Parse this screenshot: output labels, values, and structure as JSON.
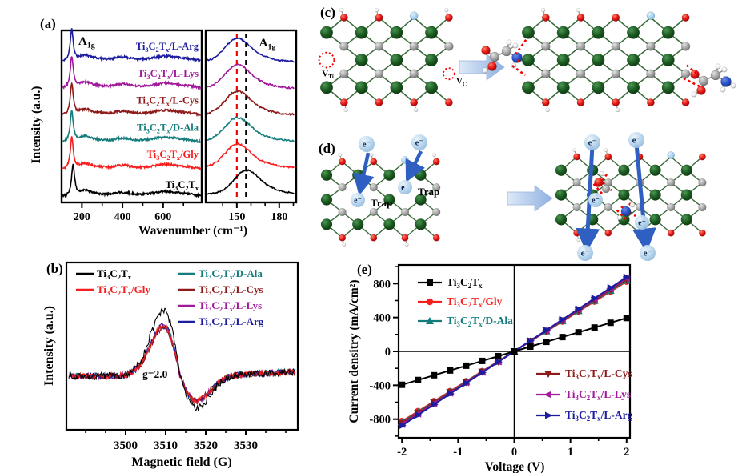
{
  "figure": {
    "panel_letters": {
      "a": "(a)",
      "b": "(b)",
      "c": "(c)",
      "d": "(d)",
      "e": "(e)"
    }
  },
  "chart_data": [
    {
      "id": "raman",
      "type": "line",
      "title": "Raman spectra",
      "xlabel": "Wavenumber (cm⁻¹)",
      "ylabel": "Intensity (a.u.)",
      "annotation": "A~1g~",
      "panels": [
        {
          "name": "full",
          "xlim": [
            100,
            790
          ],
          "xticks": [
            200,
            400,
            600
          ]
        },
        {
          "name": "zoom",
          "xlim": [
            128,
            192
          ],
          "xticks": [
            150,
            180
          ],
          "guides": [
            {
              "cm": 150,
              "color": "#f40000"
            },
            {
              "cm": 156.5,
              "color": "#000000"
            }
          ]
        }
      ],
      "secondary_bumps_cm": [
        210,
        270,
        395,
        618,
        730
      ],
      "series": [
        {
          "name": "Ti~3~C~2~T~x~/L-Arg",
          "color": "#1c1c9e",
          "stack_offset": 5,
          "a1g_peak_cm": 150
        },
        {
          "name": "Ti~3~C~2~T~x~/L-Lys",
          "color": "#a11a9c",
          "stack_offset": 4,
          "a1g_peak_cm": 150
        },
        {
          "name": "Ti~3~C~2~T~x~/L-Cys",
          "color": "#8e1a1a",
          "stack_offset": 3,
          "a1g_peak_cm": 150
        },
        {
          "name": "Ti~3~C~2~T~x~/D-Ala",
          "color": "#147c7c",
          "stack_offset": 2,
          "a1g_peak_cm": 150
        },
        {
          "name": "Ti~3~C~2~T~x~/Gly",
          "color": "#f81e1e",
          "stack_offset": 1,
          "a1g_peak_cm": 150
        },
        {
          "name": "Ti~3~C~2~T~x~",
          "color": "#000000",
          "stack_offset": 0,
          "a1g_peak_cm": 156.5
        }
      ]
    },
    {
      "id": "epr",
      "type": "line",
      "title": "EPR spectra",
      "xlabel": "Magnetic field (G)",
      "ylabel": "Intensity (a.u.)",
      "annotation": "g=2.0",
      "xlim": [
        3485.2,
        3543
      ],
      "xticks": [
        3500,
        3510,
        3520,
        3530
      ],
      "line_center_g": 3513.6,
      "peak_g": 3509.4,
      "trough_g": 3517.8,
      "series": [
        {
          "name": "Ti~3~C~2~T~x~",
          "color": "#000000",
          "rel_amplitude": 1.0
        },
        {
          "name": "Ti~3~C~2~T~x~/Gly",
          "color": "#f81e1e",
          "rel_amplitude": 0.78
        },
        {
          "name": "Ti~3~C~2~T~x~/D-Ala",
          "color": "#147c7c",
          "rel_amplitude": 0.8
        },
        {
          "name": "Ti~3~C~2~T~x~/L-Cys",
          "color": "#8e1a1a",
          "rel_amplitude": 0.76
        },
        {
          "name": "Ti~3~C~2~T~x~/L-Lys",
          "color": "#a11a9c",
          "rel_amplitude": 0.77
        },
        {
          "name": "Ti~3~C~2~T~x~/L-Arg",
          "color": "#1c1c9e",
          "rel_amplitude": 0.79
        }
      ]
    },
    {
      "id": "iv",
      "type": "line",
      "title": "I-V curves",
      "xlabel": "Voltage (V)",
      "ylabel": "Current densitry (mA/cm²)",
      "xlim": [
        -2.06,
        2.06
      ],
      "ylim": [
        -1020,
        1020
      ],
      "xticks": [
        -2,
        -1,
        0,
        1,
        2
      ],
      "yticks": [
        800,
        400,
        0,
        -400,
        -800
      ],
      "series": [
        {
          "name": "Ti~3~C~2~T~x~",
          "color": "#000000",
          "marker": "square",
          "slope_mA_per_V": 197,
          "y_at_minus2": -394,
          "y_at_2": 394
        },
        {
          "name": "Ti~3~C~2~T~x~/Gly",
          "color": "#f81e1e",
          "marker": "circle",
          "slope_mA_per_V": 412,
          "y_at_minus2": -824,
          "y_at_2": 824
        },
        {
          "name": "Ti~3~C~2~T~x~/D-Ala",
          "color": "#147c7c",
          "marker": "triangle-up",
          "slope_mA_per_V": 418,
          "y_at_minus2": -836,
          "y_at_2": 836
        },
        {
          "name": "Ti~3~C~2~T~x~/L-Cys",
          "color": "#8e1a1a",
          "marker": "triangle-down",
          "slope_mA_per_V": 424,
          "y_at_minus2": -848,
          "y_at_2": 848
        },
        {
          "name": "Ti~3~C~2~T~x~/L-Lys",
          "color": "#a11a9c",
          "marker": "triangle-left",
          "slope_mA_per_V": 431,
          "y_at_minus2": -862,
          "y_at_2": 862
        },
        {
          "name": "Ti~3~C~2~T~x~/L-Arg",
          "color": "#1c1c9e",
          "marker": "triangle-right",
          "slope_mA_per_V": 438,
          "y_at_minus2": -876,
          "y_at_2": 876
        }
      ]
    }
  ],
  "diagrams": {
    "labels": {
      "v_ti": "V~Ti~",
      "v_c": "V~C~",
      "electron": "e⁻",
      "trap": "Trap"
    },
    "atom_colors": {
      "Ti": "#1c5c22",
      "C": "#a8a8a8",
      "O": "#e51616",
      "H": "#f5f5f5",
      "F": "#aed6f2",
      "N": "#2a52cc"
    },
    "arrow_color": "#2f5fc0"
  }
}
